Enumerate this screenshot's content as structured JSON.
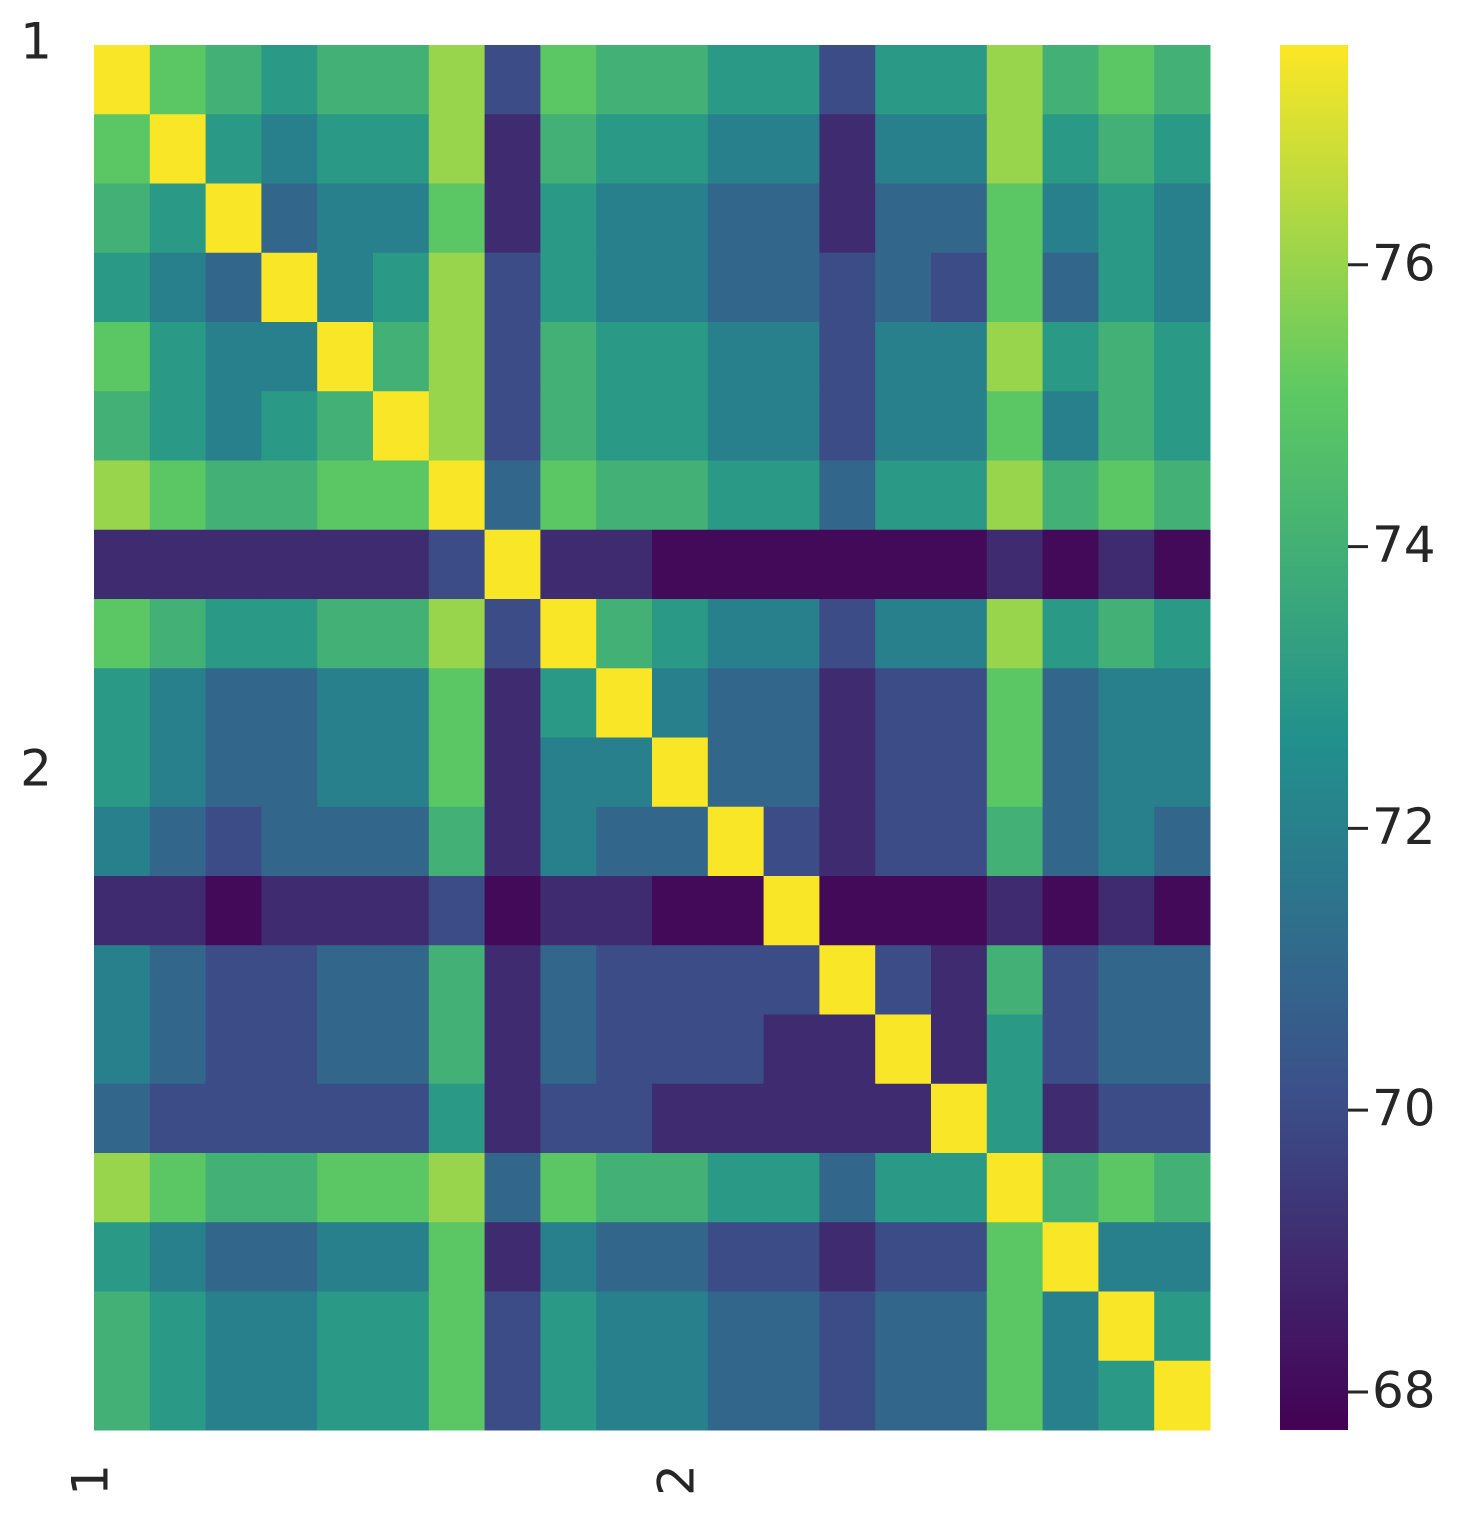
{
  "chart_data": {
    "type": "heatmap",
    "rows": [
      "1",
      null,
      null,
      null,
      null,
      null,
      null,
      null,
      null,
      null,
      "2",
      null,
      null,
      null,
      null,
      null,
      null,
      null,
      null,
      null
    ],
    "columns": [
      "1",
      null,
      null,
      null,
      null,
      null,
      null,
      null,
      null,
      null,
      "2",
      null,
      null,
      null,
      null,
      null,
      null,
      null,
      null,
      null
    ],
    "values": [
      [
        77.5,
        75,
        74,
        73,
        74,
        74,
        76,
        70,
        75,
        74,
        74,
        73,
        73,
        70,
        73,
        73,
        76,
        74,
        75,
        74
      ],
      [
        75,
        77.5,
        73,
        72,
        73,
        73,
        76,
        69,
        74,
        73,
        73,
        72,
        72,
        69,
        72,
        72,
        76,
        73,
        74,
        73
      ],
      [
        74,
        73,
        77.5,
        71,
        72,
        72,
        75,
        69,
        73,
        72,
        72,
        71,
        71,
        69,
        71,
        71,
        75,
        72,
        73,
        72
      ],
      [
        73,
        72,
        71,
        77.5,
        72,
        73,
        76,
        70,
        73,
        72,
        72,
        71,
        71,
        70,
        71,
        70,
        75,
        71,
        73,
        72
      ],
      [
        75,
        73,
        72,
        72,
        77.5,
        74,
        76,
        70,
        74,
        73,
        73,
        72,
        72,
        70,
        72,
        72,
        76,
        73,
        74,
        73
      ],
      [
        74,
        73,
        72,
        73,
        74,
        77.5,
        76,
        70,
        74,
        73,
        73,
        72,
        72,
        70,
        72,
        72,
        75,
        72,
        74,
        73
      ],
      [
        76,
        75,
        74,
        74,
        75,
        75,
        77.5,
        71,
        75,
        74,
        74,
        73,
        73,
        71,
        73,
        73,
        76,
        74,
        75,
        74
      ],
      [
        69,
        69,
        69,
        69,
        69,
        69,
        70,
        77.5,
        69,
        69,
        68,
        68,
        68,
        68,
        68,
        68,
        69,
        68,
        69,
        68
      ],
      [
        75,
        74,
        73,
        73,
        74,
        74,
        76,
        70,
        77.5,
        74,
        73,
        72,
        72,
        70,
        72,
        72,
        76,
        73,
        74,
        73
      ],
      [
        73,
        72,
        71,
        71,
        72,
        72,
        75,
        69,
        73,
        77.5,
        72,
        71,
        71,
        69,
        70,
        70,
        75,
        71,
        72,
        72
      ],
      [
        73,
        72,
        71,
        71,
        72,
        72,
        75,
        69,
        72,
        72,
        77.5,
        71,
        71,
        69,
        70,
        70,
        75,
        71,
        72,
        72
      ],
      [
        72,
        71,
        70,
        71,
        71,
        71,
        74,
        69,
        72,
        71,
        71,
        77.5,
        70,
        69,
        70,
        70,
        74,
        71,
        72,
        71
      ],
      [
        69,
        69,
        68,
        69,
        69,
        69,
        70,
        68,
        69,
        69,
        68,
        68,
        77.5,
        68,
        68,
        68,
        69,
        68,
        69,
        68
      ],
      [
        72,
        71,
        70,
        70,
        71,
        71,
        74,
        69,
        71,
        70,
        70,
        70,
        70,
        77.5,
        70,
        69,
        74,
        70,
        71,
        71
      ],
      [
        72,
        71,
        70,
        70,
        71,
        71,
        74,
        69,
        71,
        70,
        70,
        70,
        69,
        69,
        77.5,
        69,
        73,
        70,
        71,
        71
      ],
      [
        71,
        70,
        70,
        70,
        70,
        70,
        73,
        69,
        70,
        70,
        69,
        69,
        69,
        69,
        69,
        77.5,
        73,
        69,
        70,
        70
      ],
      [
        76,
        75,
        74,
        74,
        75,
        75,
        76,
        71,
        75,
        74,
        74,
        73,
        73,
        71,
        73,
        73,
        77.5,
        74,
        75,
        74
      ],
      [
        73,
        72,
        71,
        71,
        72,
        72,
        75,
        69,
        72,
        71,
        71,
        70,
        70,
        69,
        70,
        70,
        75,
        77.5,
        72,
        72
      ],
      [
        74,
        73,
        72,
        72,
        73,
        73,
        75,
        70,
        73,
        72,
        72,
        71,
        71,
        70,
        71,
        71,
        75,
        72,
        77.5,
        73
      ],
      [
        74,
        73,
        72,
        72,
        73,
        73,
        75,
        70,
        73,
        72,
        72,
        71,
        71,
        70,
        71,
        71,
        75,
        72,
        73,
        77.5
      ]
    ],
    "clim": [
      67.73,
      77.56
    ],
    "cticks": [
      68,
      70,
      72,
      74,
      76
    ],
    "colormap": [
      "#440154",
      "#3b528b",
      "#21918c",
      "#5ec962",
      "#fde725"
    ]
  }
}
